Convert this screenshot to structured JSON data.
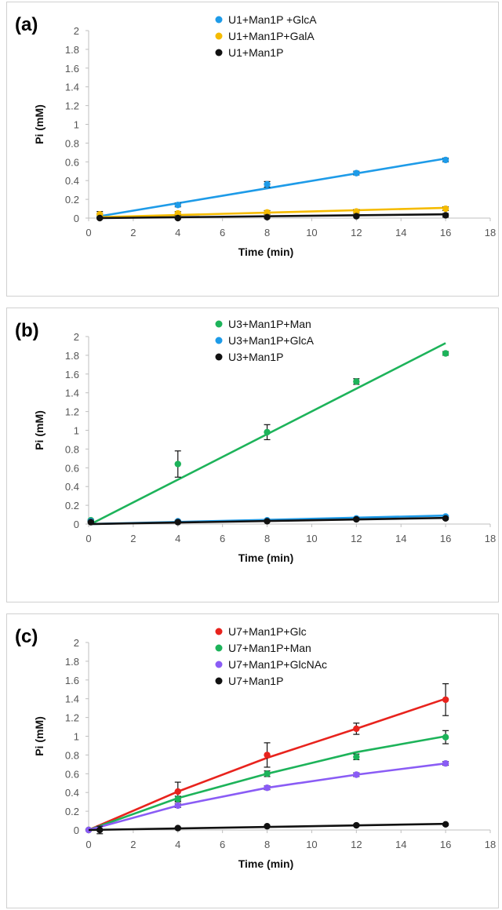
{
  "chart_data": [
    {
      "panel_label": "(a)",
      "type": "scatter",
      "xlabel": "Time (min)",
      "ylabel": "Pi (mM)",
      "xlim": [
        0,
        18
      ],
      "ylim": [
        0,
        2
      ],
      "xticks": [
        "0",
        "2",
        "4",
        "6",
        "8",
        "10",
        "12",
        "14",
        "16",
        "18"
      ],
      "yticks": [
        "0",
        "0.2",
        "0.4",
        "0.6",
        "0.8",
        "1",
        "1.2",
        "1.4",
        "1.6",
        "1.8",
        "2"
      ],
      "legend_position": "top",
      "series": [
        {
          "name": "U1+Man1P +GlcA",
          "color": "#1e9be8",
          "x": [
            0.5,
            4,
            8,
            12,
            16
          ],
          "y": [
            0.03,
            0.14,
            0.36,
            0.48,
            0.62
          ],
          "err": [
            0.02,
            0.02,
            0.03,
            0.02,
            0.02
          ],
          "fit": [
            [
              0.5,
              0.02
            ],
            [
              16,
              0.635
            ]
          ]
        },
        {
          "name": "U1+Man1P+GalA",
          "color": "#f5bb00",
          "x": [
            0.5,
            4,
            8,
            12,
            16
          ],
          "y": [
            0.04,
            0.05,
            0.06,
            0.07,
            0.1
          ],
          "err": [
            0.03,
            0.02,
            0.02,
            0.02,
            0.02
          ],
          "fit": [
            [
              0.5,
              0.01
            ],
            [
              16,
              0.11
            ]
          ]
        },
        {
          "name": "U1+Man1P",
          "color": "#111111",
          "x": [
            0.5,
            4,
            8,
            12,
            16
          ],
          "y": [
            0.0,
            0.0,
            0.01,
            0.02,
            0.03
          ],
          "err": [
            0.01,
            0.01,
            0.01,
            0.01,
            0.02
          ],
          "fit": [
            [
              0.5,
              0.0
            ],
            [
              16,
              0.04
            ]
          ]
        }
      ]
    },
    {
      "panel_label": "(b)",
      "type": "scatter",
      "xlabel": "Time (min)",
      "ylabel": "Pi (mM)",
      "xlim": [
        0,
        18
      ],
      "ylim": [
        0,
        2
      ],
      "xticks": [
        "0",
        "2",
        "4",
        "6",
        "8",
        "10",
        "12",
        "14",
        "16",
        "18"
      ],
      "yticks": [
        "0",
        "0.2",
        "0.4",
        "0.6",
        "0.8",
        "1",
        "1.2",
        "1.4",
        "1.6",
        "1.8",
        "2"
      ],
      "legend_position": "top",
      "series": [
        {
          "name": "U3+Man1P+Man",
          "color": "#1db35a",
          "x": [
            0.1,
            4,
            8,
            12,
            16
          ],
          "y": [
            0.04,
            0.64,
            0.98,
            1.52,
            1.82
          ],
          "err": [
            0.01,
            0.14,
            0.08,
            0.03,
            0.02
          ],
          "fit": [
            [
              0.1,
              0.0
            ],
            [
              16,
              1.93
            ]
          ]
        },
        {
          "name": "U3+Man1P+GlcA",
          "color": "#1e9be8",
          "x": [
            0.1,
            4,
            8,
            12,
            16
          ],
          "y": [
            0.03,
            0.03,
            0.04,
            0.06,
            0.08
          ],
          "err": [
            0.01,
            0.01,
            0.01,
            0.01,
            0.01
          ],
          "fit": [
            [
              0.1,
              0.0
            ],
            [
              16,
              0.09
            ]
          ]
        },
        {
          "name": "U3+Man1P",
          "color": "#111111",
          "x": [
            0.1,
            4,
            8,
            12,
            16
          ],
          "y": [
            0.02,
            0.02,
            0.03,
            0.05,
            0.06
          ],
          "err": [
            0.01,
            0.01,
            0.01,
            0.01,
            0.01
          ],
          "fit": [
            [
              0.1,
              0.0
            ],
            [
              16,
              0.065
            ]
          ]
        }
      ]
    },
    {
      "panel_label": "(c)",
      "type": "scatter",
      "xlabel": "Time (min)",
      "ylabel": "Pi (mM)",
      "xlim": [
        0,
        18
      ],
      "ylim": [
        0,
        2
      ],
      "xticks": [
        "0",
        "2",
        "4",
        "6",
        "8",
        "10",
        "12",
        "14",
        "16",
        "18"
      ],
      "yticks": [
        "0",
        "0.2",
        "0.4",
        "0.6",
        "0.8",
        "1",
        "1.2",
        "1.4",
        "1.6",
        "1.8",
        "2"
      ],
      "legend_position": "top",
      "series": [
        {
          "name": "U7+Man1P+Glc",
          "color": "#e8231d",
          "x": [
            0,
            4,
            8,
            12,
            16
          ],
          "y": [
            0.0,
            0.41,
            0.8,
            1.08,
            1.39
          ],
          "err": [
            0.0,
            0.1,
            0.13,
            0.06,
            0.17
          ],
          "fit": [
            [
              0,
              0.0
            ],
            [
              4,
              0.41
            ],
            [
              8,
              0.77
            ],
            [
              12,
              1.08
            ],
            [
              16,
              1.4
            ]
          ]
        },
        {
          "name": "U7+Man1P+Man",
          "color": "#1db35a",
          "x": [
            0,
            4,
            8,
            12,
            16
          ],
          "y": [
            0.0,
            0.33,
            0.6,
            0.78,
            0.99
          ],
          "err": [
            0.0,
            0.03,
            0.03,
            0.03,
            0.07
          ],
          "fit": [
            [
              0,
              0.0
            ],
            [
              4,
              0.34
            ],
            [
              8,
              0.6
            ],
            [
              12,
              0.83
            ],
            [
              16,
              1.0
            ]
          ]
        },
        {
          "name": "U7+Man1P+GlcNAc",
          "color": "#8a5cf5",
          "x": [
            0,
            4,
            8,
            12,
            16
          ],
          "y": [
            0.0,
            0.26,
            0.45,
            0.59,
            0.71
          ],
          "err": [
            0.0,
            0.02,
            0.02,
            0.02,
            0.02
          ],
          "fit": [
            [
              0,
              0.0
            ],
            [
              4,
              0.26
            ],
            [
              8,
              0.45
            ],
            [
              12,
              0.59
            ],
            [
              16,
              0.71
            ]
          ]
        },
        {
          "name": "U7+Man1P",
          "color": "#111111",
          "x": [
            0.5,
            4,
            8,
            12,
            16
          ],
          "y": [
            0.0,
            0.02,
            0.04,
            0.05,
            0.06
          ],
          "err": [
            0.04,
            0.01,
            0.01,
            0.01,
            0.01
          ],
          "fit": [
            [
              0,
              0.0
            ],
            [
              16,
              0.065
            ]
          ]
        }
      ]
    }
  ]
}
